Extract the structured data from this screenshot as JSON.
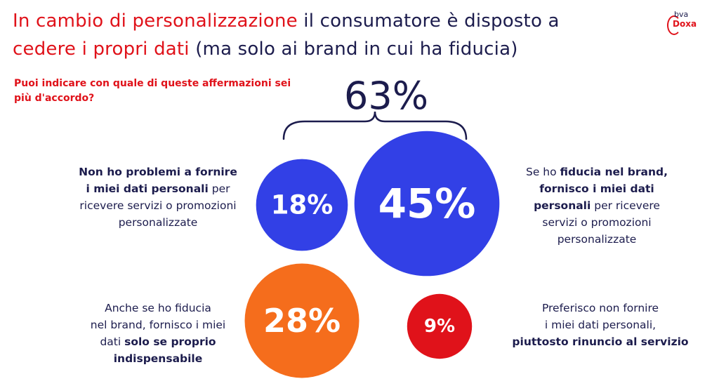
{
  "title": {
    "highlight_1": "In cambio di personalizzazione",
    "part_1": " il consumatore è disposto a",
    "highlight_2": "cedere i propri dati",
    "part_2": " (ma solo ai brand in cui ha fiducia)"
  },
  "logo": {
    "line_1": "bva",
    "line_2": "Doxa"
  },
  "question": "Puoi indicare con quale di queste affermazioni sei più d'accordo?",
  "colors": {
    "blue": "#3240e6",
    "orange": "#f56d1c",
    "red": "#e0121a",
    "navy": "#1c1c4d"
  },
  "chart_data": {
    "type": "bubble",
    "total": {
      "label": "63%",
      "value": 63,
      "covers": [
        "no_problem",
        "trust_brand"
      ]
    },
    "bubbles": [
      {
        "id": "no_problem",
        "value": 18,
        "label": "18%",
        "color": "#3240e6",
        "caption": [
          [
            {
              "t": "Non ho problemi a fornire",
              "b": true
            }
          ],
          [
            {
              "t": "i miei dati personali",
              "b": true
            },
            {
              "t": " per",
              "b": false
            }
          ],
          [
            {
              "t": "ricevere servizi o promozioni",
              "b": false
            }
          ],
          [
            {
              "t": "personalizzate",
              "b": false
            }
          ]
        ]
      },
      {
        "id": "trust_brand",
        "value": 45,
        "label": "45%",
        "color": "#3240e6",
        "caption": [
          [
            {
              "t": "Se ho ",
              "b": false
            },
            {
              "t": "fiducia nel brand,",
              "b": true
            }
          ],
          [
            {
              "t": "fornisco i miei dati",
              "b": true
            }
          ],
          [
            {
              "t": "personali",
              "b": true
            },
            {
              "t": " per ricevere",
              "b": false
            }
          ],
          [
            {
              "t": "servizi o promozioni",
              "b": false
            }
          ],
          [
            {
              "t": "personalizzate",
              "b": false
            }
          ]
        ]
      },
      {
        "id": "only_if_necessary",
        "value": 28,
        "label": "28%",
        "color": "#f56d1c",
        "caption": [
          [
            {
              "t": "Anche se ho fiducia",
              "b": false
            }
          ],
          [
            {
              "t": "nel brand, fornisco i miei",
              "b": false
            }
          ],
          [
            {
              "t": "dati ",
              "b": false
            },
            {
              "t": "solo se proprio",
              "b": true
            }
          ],
          [
            {
              "t": "indispensabile",
              "b": true
            }
          ]
        ]
      },
      {
        "id": "prefer_not",
        "value": 9,
        "label": "9%",
        "color": "#e0121a",
        "caption": [
          [
            {
              "t": "Preferisco non fornire",
              "b": false
            }
          ],
          [
            {
              "t": "i miei dati personali,",
              "b": false
            }
          ],
          [
            {
              "t": "piuttosto rinuncio al servizio",
              "b": true
            }
          ]
        ]
      }
    ]
  }
}
